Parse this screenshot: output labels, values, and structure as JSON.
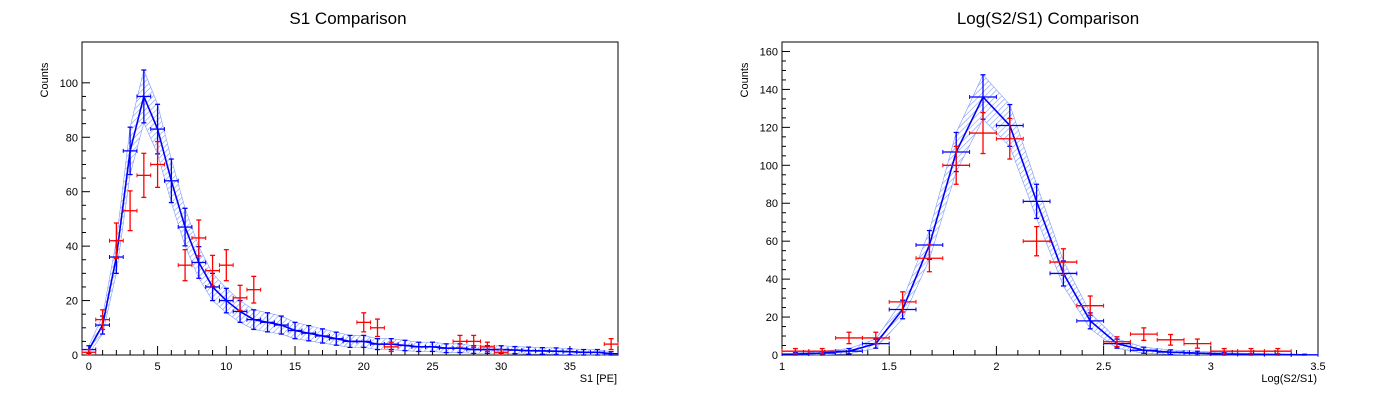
{
  "colors": {
    "data": "#ff0000",
    "model": "#0000ff",
    "band": "#6f8fff"
  },
  "chart_data": [
    {
      "type": "line",
      "title": "S1 Comparison",
      "xlabel": "S1 [PE]",
      "ylabel": "Counts",
      "xlim": [
        -0.5,
        38.5
      ],
      "ylim": [
        0,
        115
      ],
      "xticks": [
        0,
        5,
        10,
        15,
        20,
        25,
        30,
        35
      ],
      "yticks": [
        0,
        20,
        40,
        60,
        80,
        100
      ],
      "bin_width": 1,
      "series": [
        {
          "style": "band-line",
          "x": [
            0,
            1,
            2,
            3,
            4,
            5,
            6,
            7,
            8,
            9,
            10,
            11,
            12,
            13,
            14,
            15,
            16,
            17,
            18,
            19,
            20,
            21,
            22,
            23,
            24,
            25,
            26,
            27,
            28,
            29,
            30,
            31,
            32,
            33,
            34,
            35,
            36,
            37,
            38
          ],
          "y": [
            2,
            11,
            36,
            75,
            95,
            83,
            64,
            47,
            34,
            25,
            20,
            16,
            13,
            12,
            11,
            9,
            8,
            7,
            6,
            5,
            5,
            4,
            4,
            3.5,
            3,
            3,
            2.5,
            2.5,
            2,
            2,
            2,
            1.8,
            1.6,
            1.5,
            1.4,
            1.2,
            1,
            1,
            0.5
          ],
          "err": [
            1.4,
            3.3,
            6,
            8.7,
            9.7,
            9.1,
            8,
            6.9,
            5.8,
            5,
            4.5,
            4,
            3.6,
            3.5,
            3.3,
            3,
            2.8,
            2.6,
            2.4,
            2.2,
            2.2,
            2,
            2,
            1.9,
            1.7,
            1.7,
            1.6,
            1.6,
            1.4,
            1.4,
            1.4,
            1.3,
            1.3,
            1.2,
            1.2,
            1.1,
            1,
            1,
            0.7
          ]
        },
        {
          "style": "errorbar",
          "x": [
            0,
            1,
            2,
            3,
            4,
            5,
            7,
            8,
            9,
            10,
            11,
            12,
            20,
            21,
            22,
            27,
            28,
            29,
            30,
            38
          ],
          "y": [
            1,
            13,
            42,
            53,
            66,
            70,
            33,
            43,
            31,
            33,
            21,
            24,
            12,
            10,
            3,
            5,
            5,
            3,
            1,
            4
          ],
          "err": [
            1,
            3.6,
            6.5,
            7.3,
            8.1,
            8.4,
            5.7,
            6.6,
            5.6,
            5.7,
            4.6,
            4.9,
            3.5,
            3.2,
            1.7,
            2.2,
            2.2,
            1.7,
            1,
            2
          ]
        }
      ]
    },
    {
      "type": "line",
      "title": "Log(S2/S1) Comparison",
      "xlabel": "Log(S2/S1)",
      "ylabel": "Counts",
      "xlim": [
        1,
        3.5
      ],
      "ylim": [
        0,
        165
      ],
      "xticks": [
        1,
        1.5,
        2,
        2.5,
        3,
        3.5
      ],
      "yticks": [
        0,
        20,
        40,
        60,
        80,
        100,
        120,
        140,
        160
      ],
      "bin_width": 0.125,
      "series": [
        {
          "style": "band-line",
          "x": [
            1.0625,
            1.1875,
            1.3125,
            1.4375,
            1.5625,
            1.6875,
            1.8125,
            1.9375,
            2.0625,
            2.1875,
            2.3125,
            2.4375,
            2.5625,
            2.6875,
            2.8125,
            2.9375,
            3.0625,
            3.1875,
            3.3125,
            3.4375
          ],
          "y": [
            0.5,
            1,
            2,
            6,
            24,
            58,
            107,
            136,
            121,
            81,
            43,
            18,
            6,
            2.5,
            1.5,
            1,
            0.5,
            0.3,
            0.2,
            0.1
          ],
          "err": [
            0.7,
            1,
            1.4,
            2.4,
            4.9,
            7.6,
            10.3,
            11.7,
            11,
            9,
            6.6,
            4.2,
            2.4,
            1.6,
            1.2,
            1,
            0.7,
            0.5,
            0.4,
            0.3
          ]
        },
        {
          "style": "errorbar",
          "x": [
            1.0625,
            1.1875,
            1.3125,
            1.4375,
            1.5625,
            1.6875,
            1.8125,
            1.9375,
            2.0625,
            2.1875,
            2.3125,
            2.4375,
            2.5625,
            2.6875,
            2.8125,
            2.9375,
            3.0625,
            3.1875,
            3.3125
          ],
          "y": [
            2,
            2,
            9,
            9,
            28,
            51,
            100,
            117,
            114,
            60,
            49,
            26,
            7,
            11,
            8,
            6,
            2,
            2,
            2
          ],
          "err": [
            1.4,
            1.4,
            3,
            3,
            5.3,
            7.1,
            10,
            10.8,
            10.7,
            7.7,
            7,
            5.1,
            2.6,
            3.3,
            2.8,
            2.4,
            1.4,
            1.4,
            1.4
          ]
        }
      ]
    }
  ]
}
